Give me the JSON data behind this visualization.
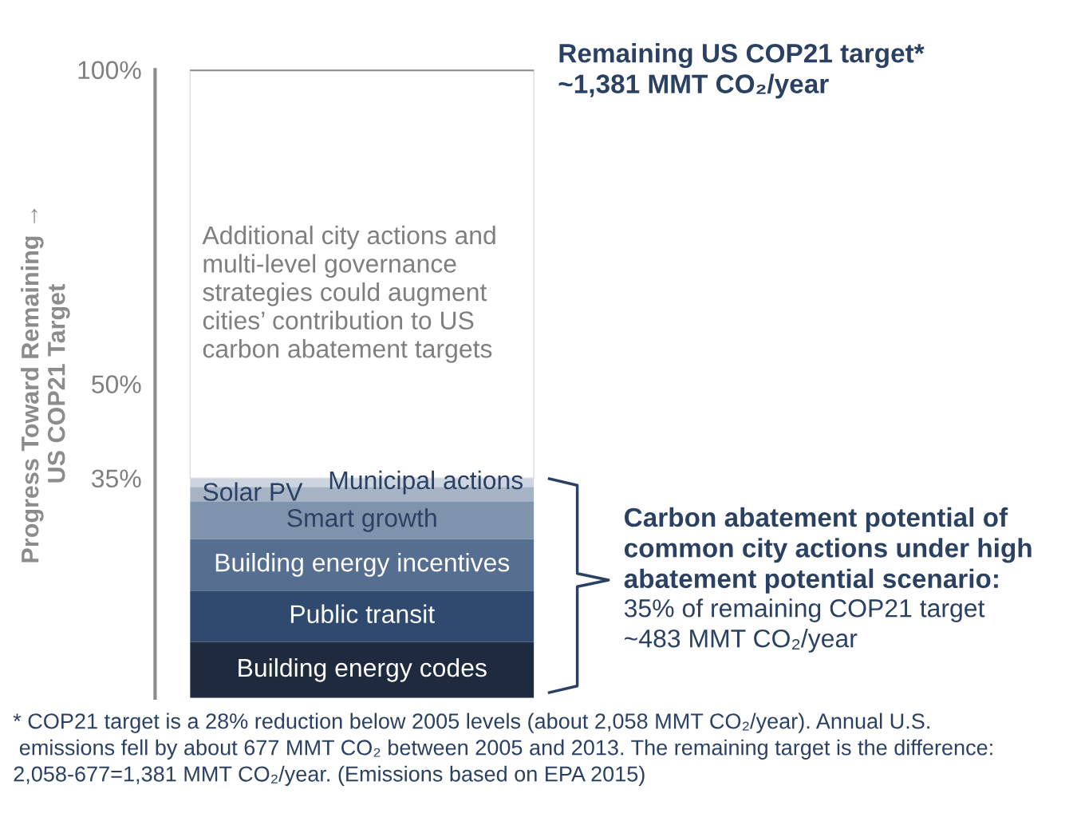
{
  "chart_data": {
    "type": "bar",
    "stacked": true,
    "categories": [
      null
    ],
    "series": [
      {
        "name": "Building energy codes",
        "color": "#1e2a3d",
        "values": [
          8.9
        ]
      },
      {
        "name": "Public transit",
        "color": "#2f4a6e",
        "values": [
          8.2
        ]
      },
      {
        "name": "Building energy incentives",
        "color": "#566e8f",
        "values": [
          8.2
        ]
      },
      {
        "name": "Smart growth",
        "color": "#8093ad",
        "values": [
          6.0
        ]
      },
      {
        "name": "Solar PV",
        "color": "#a6b4c6",
        "values": [
          2.3
        ]
      },
      {
        "name": "Municipal actions",
        "color": "#cbd4df",
        "values": [
          1.4
        ]
      },
      {
        "name": "Additional city actions and\nmulti-level governance\nstrategies could augment\ncities’ contribution to US\ncarbon abatement targets",
        "color": "#ffffff",
        "values": [
          65.0
        ]
      }
    ],
    "ylim": [
      0,
      100
    ],
    "yticks": [
      {
        "value": 100,
        "label": "100%"
      },
      {
        "value": 50,
        "label": "50%"
      },
      {
        "value": 35,
        "label": "35%"
      }
    ],
    "ylabel": "Progress Toward Remaining →\nUS COP21 Target",
    "grid": false,
    "legend": false,
    "annotations": [
      "Remaining US COP21 target*\n~1,381 MMT CO₂/year",
      "Carbon abatement potential of\ncommon city actions under high\nabatement potential scenario:",
      "35% of remaining COP21 target\n~483 MMT CO₂/year",
      "* COP21 target is a 28% reduction below 2005 levels (about 2,058 MMT CO₂/year). Annual U.S.\n emissions fell by about 677 MMT CO₂ between 2005 and 2013. The remaining target is the difference:\n2,058-677=1,381 MMT CO₂/year. (Emissions based on EPA 2015)"
    ]
  }
}
